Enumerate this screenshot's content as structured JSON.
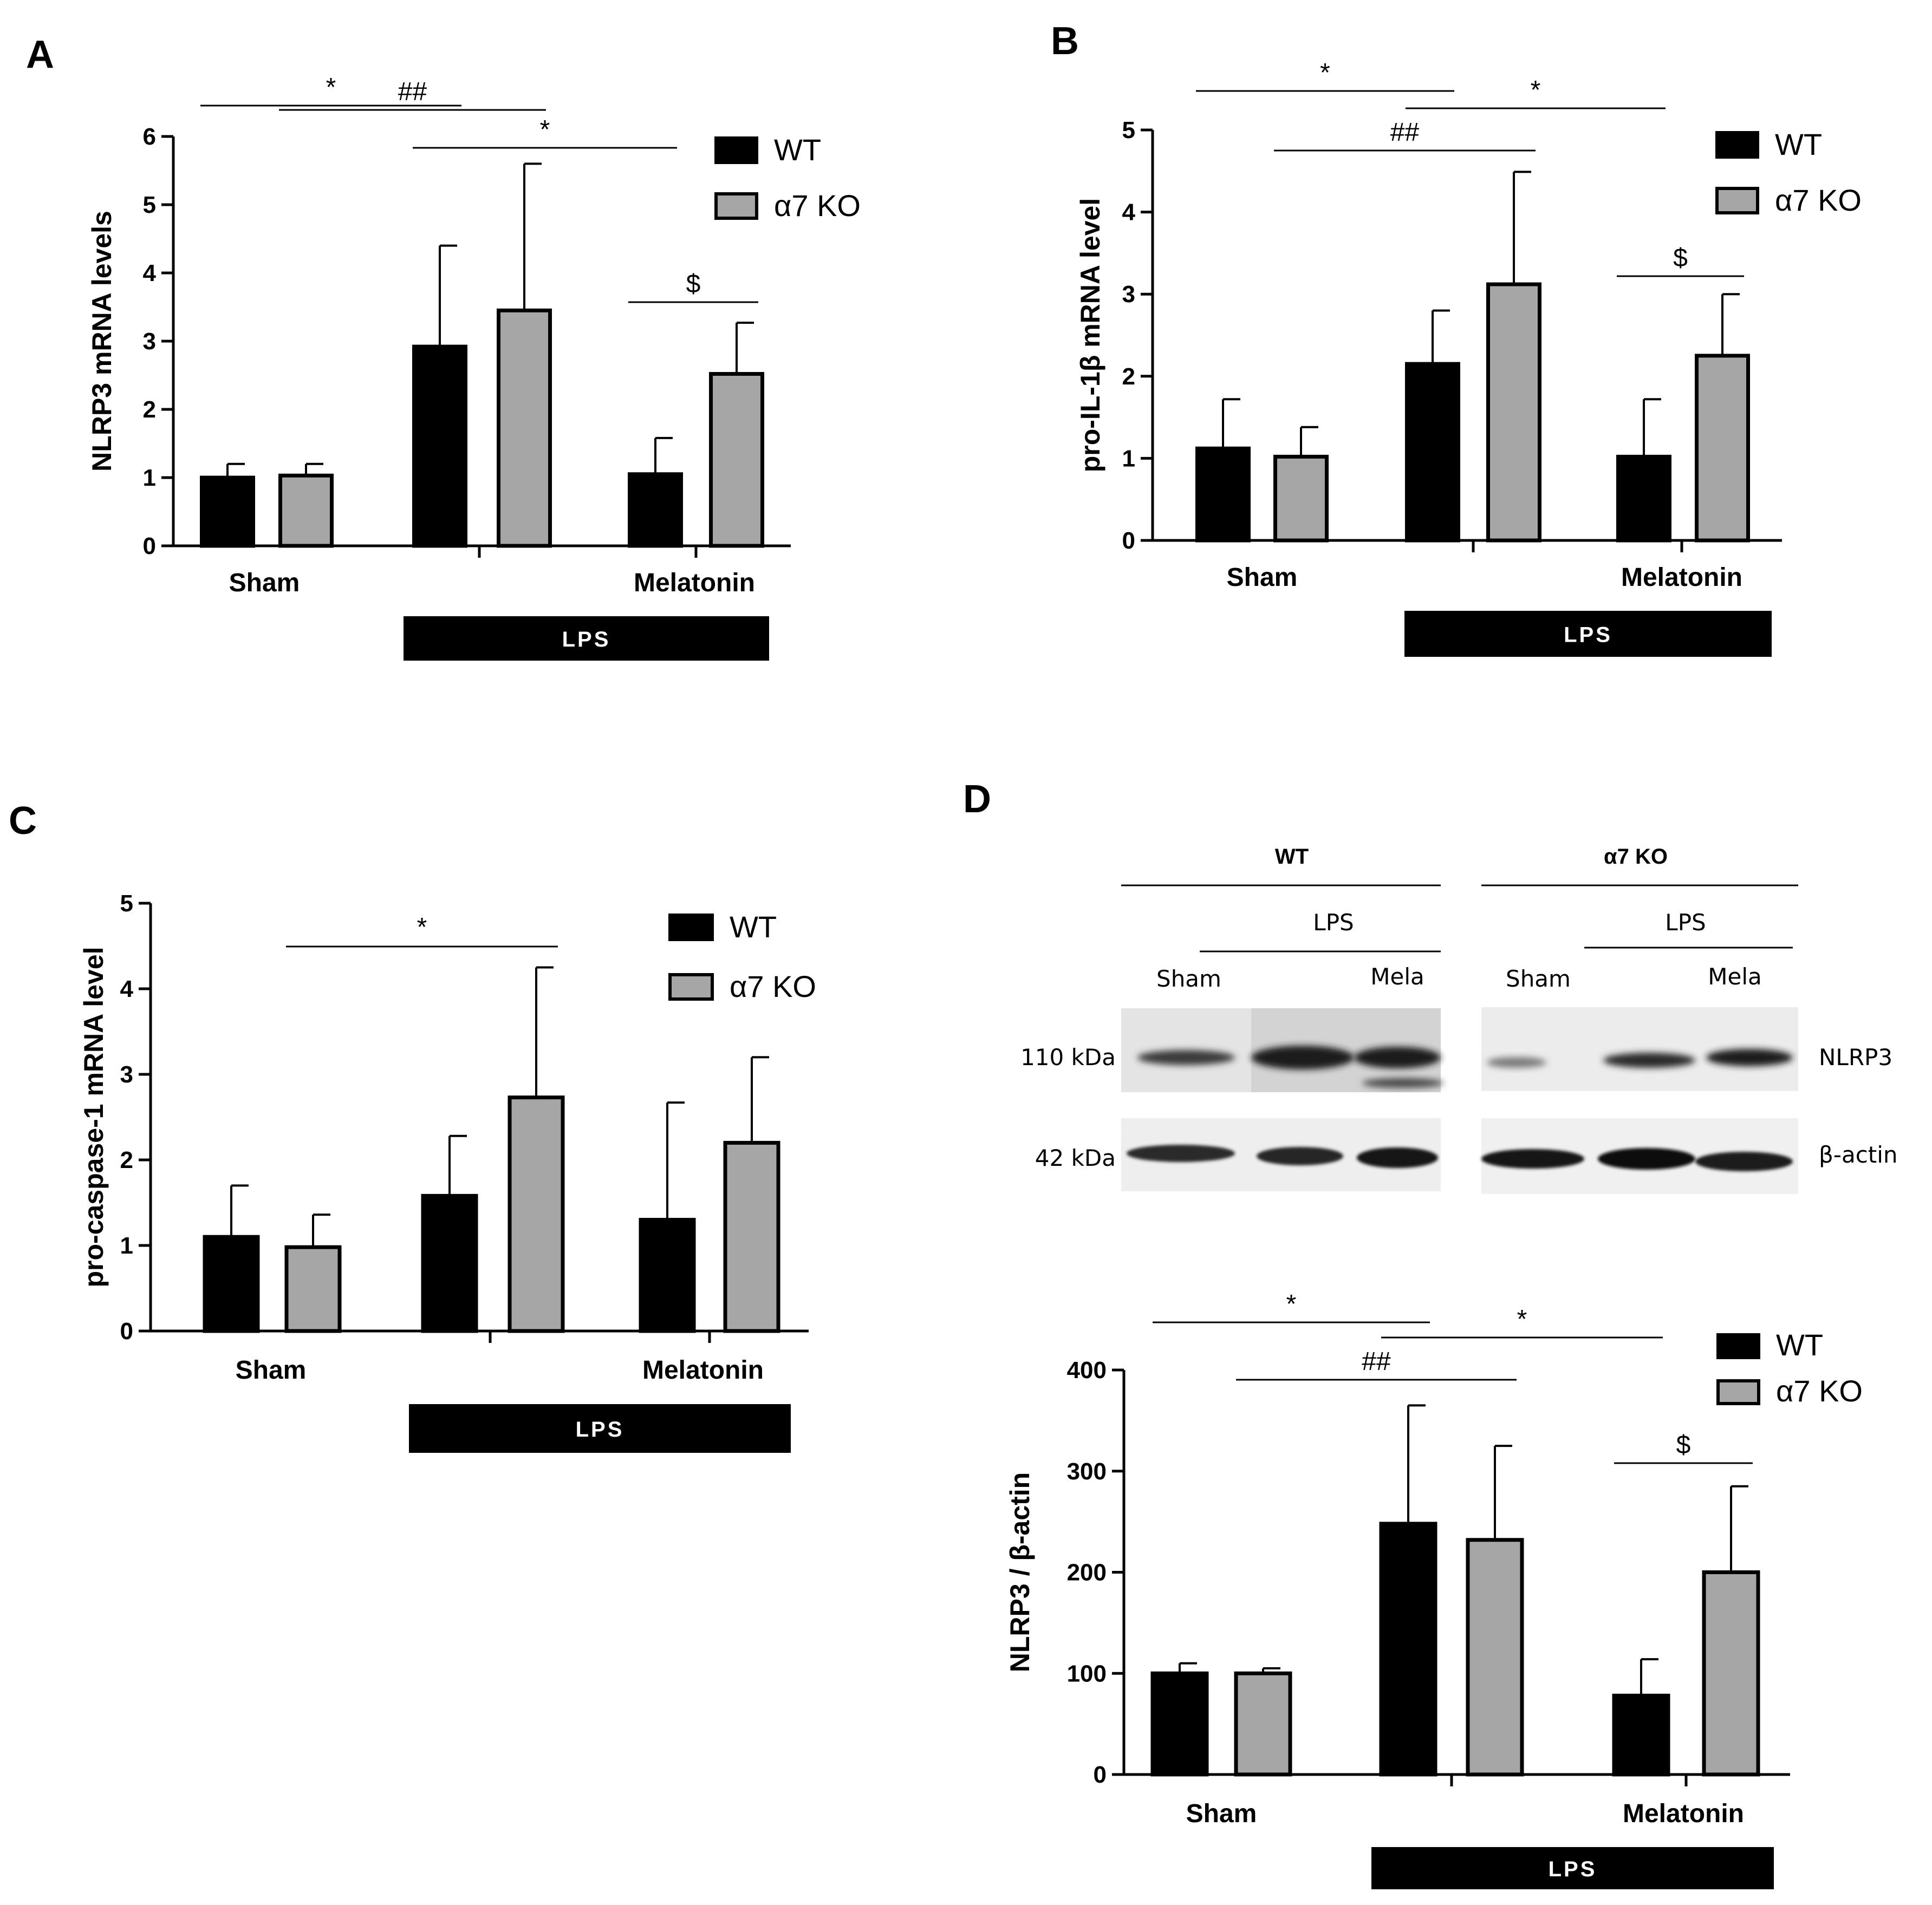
{
  "legend": {
    "wt": "WT",
    "ko": "α7 KO"
  },
  "colors": {
    "wt": "#000000",
    "ko": "#a6a6a6"
  },
  "group_labels": {
    "sham": "Sham",
    "melatonin": "Melatonin",
    "lps": "LPS"
  },
  "blot": {
    "header_wt": "WT",
    "header_ko": "α7 KO",
    "lps": "LPS",
    "sham": "Sham",
    "mela": "Mela",
    "kda_110": "110 kDa",
    "kda_42": "42 kDa",
    "nlrp3": "NLRP3",
    "actin": "β-actin"
  },
  "chart_data": [
    {
      "panel": "A",
      "type": "bar",
      "ylabel": "NLRP3 mRNA levels",
      "ylim": [
        0,
        6
      ],
      "yticks": [
        0,
        1,
        2,
        3,
        4,
        5,
        6
      ],
      "categories": [
        "Sham",
        "LPS",
        "Melatonin"
      ],
      "series": [
        {
          "name": "WT",
          "values": [
            1.0,
            2.92,
            1.05
          ],
          "errors": [
            0.2,
            1.48,
            0.53
          ]
        },
        {
          "name": "α7 KO",
          "values": [
            1.03,
            3.45,
            2.52
          ],
          "errors": [
            0.17,
            2.15,
            0.75
          ]
        }
      ],
      "annotations": [
        {
          "label": "*",
          "from": [
            0,
            0
          ],
          "to": [
            1,
            0
          ],
          "level": 3
        },
        {
          "label": "*",
          "from": [
            1,
            0
          ],
          "to": [
            2,
            0
          ],
          "level": 2
        },
        {
          "label": "##",
          "from": [
            0,
            1
          ],
          "to": [
            1,
            1
          ],
          "level": 1
        },
        {
          "label": "$",
          "from": [
            2,
            0
          ],
          "to": [
            2,
            1
          ],
          "level": 0
        }
      ]
    },
    {
      "panel": "B",
      "type": "bar",
      "ylabel": "pro-IL-1β mRNA level",
      "ylim": [
        0,
        5
      ],
      "yticks": [
        0,
        1,
        2,
        3,
        4,
        5
      ],
      "categories": [
        "Sham",
        "LPS",
        "Melatonin"
      ],
      "series": [
        {
          "name": "WT",
          "values": [
            1.12,
            2.15,
            1.02
          ],
          "errors": [
            0.6,
            0.65,
            0.7
          ]
        },
        {
          "name": "α7 KO",
          "values": [
            1.02,
            3.12,
            2.25
          ],
          "errors": [
            0.36,
            1.37,
            0.75
          ]
        }
      ],
      "annotations": [
        {
          "label": "*",
          "from": [
            0,
            0
          ],
          "to": [
            1,
            0
          ],
          "level": 3
        },
        {
          "label": "*",
          "from": [
            1,
            0
          ],
          "to": [
            2,
            0
          ],
          "level": 2
        },
        {
          "label": "##",
          "from": [
            0,
            1
          ],
          "to": [
            1,
            1
          ],
          "level": 1
        },
        {
          "label": "$",
          "from": [
            2,
            0
          ],
          "to": [
            2,
            1
          ],
          "level": 0
        }
      ]
    },
    {
      "panel": "C",
      "type": "bar",
      "ylabel": "pro-caspase-1 mRNA level",
      "ylim": [
        0,
        5
      ],
      "yticks": [
        0,
        1,
        2,
        3,
        4,
        5
      ],
      "categories": [
        "Sham",
        "LPS",
        "Melatonin"
      ],
      "series": [
        {
          "name": "WT",
          "values": [
            1.1,
            1.58,
            1.3
          ],
          "errors": [
            0.6,
            0.7,
            1.37
          ]
        },
        {
          "name": "α7 KO",
          "values": [
            0.98,
            2.73,
            2.2
          ],
          "errors": [
            0.38,
            1.52,
            1.0
          ]
        }
      ],
      "annotations": [
        {
          "label": "*",
          "from": [
            0,
            1
          ],
          "to": [
            1,
            1
          ],
          "level": 0
        }
      ]
    },
    {
      "panel": "D",
      "type": "bar",
      "ylabel": "NLRP3 / β-actin",
      "ylim": [
        0,
        400
      ],
      "yticks": [
        0,
        100,
        200,
        300,
        400
      ],
      "categories": [
        "Sham",
        "LPS",
        "Melatonin"
      ],
      "series": [
        {
          "name": "WT",
          "values": [
            100,
            248,
            78
          ],
          "errors": [
            10,
            117,
            36
          ]
        },
        {
          "name": "α7 KO",
          "values": [
            100,
            232,
            200
          ],
          "errors": [
            5,
            93,
            85
          ]
        }
      ],
      "annotations": [
        {
          "label": "*",
          "from": [
            0,
            0
          ],
          "to": [
            1,
            0
          ],
          "level": 3
        },
        {
          "label": "*",
          "from": [
            1,
            0
          ],
          "to": [
            2,
            0
          ],
          "level": 2
        },
        {
          "label": "##",
          "from": [
            0,
            1
          ],
          "to": [
            1,
            1
          ],
          "level": 1
        },
        {
          "label": "$",
          "from": [
            2,
            0
          ],
          "to": [
            2,
            1
          ],
          "level": 0
        }
      ]
    }
  ]
}
